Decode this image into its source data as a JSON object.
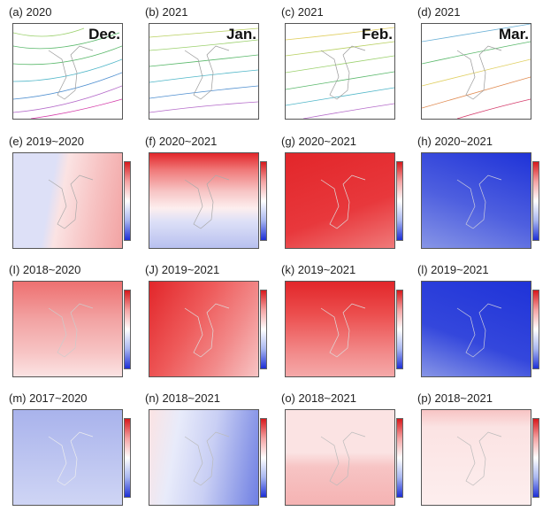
{
  "panels": [
    {
      "label": "(a) 2020",
      "month": "Dec."
    },
    {
      "label": "(b) 2021",
      "month": "Jan."
    },
    {
      "label": "(c) 2021",
      "month": "Feb."
    },
    {
      "label": "(d) 2021",
      "month": "Mar."
    },
    {
      "label": "(e) 2019~2020"
    },
    {
      "label": "(f) 2020~2021"
    },
    {
      "label": "(g) 2020~2021"
    },
    {
      "label": "(h) 2020~2021"
    },
    {
      "label": "(I) 2018~2020"
    },
    {
      "label": "(J) 2019~2021"
    },
    {
      "label": "(k) 2019~2021"
    },
    {
      "label": "(l) 2019~2021"
    },
    {
      "label": "(m) 2017~2020"
    },
    {
      "label": "(n) 2018~2021"
    },
    {
      "label": "(o) 2018~2021"
    },
    {
      "label": "(p) 2018~2021"
    }
  ],
  "colors": {
    "warm_strong": "#e2262a",
    "warm_mid": "#f07a7a",
    "warm_light": "#f7c4c4",
    "neutral": "#fdeeee",
    "cool_light": "#dde0f7",
    "cool_mid": "#8795e6",
    "cool_strong": "#1f33d8"
  }
}
